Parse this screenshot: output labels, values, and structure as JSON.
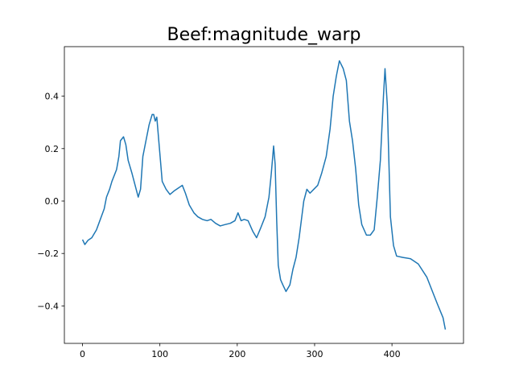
{
  "chart_data": {
    "type": "line",
    "title": "Beef:magnitude_warp",
    "x": [
      0,
      3,
      7,
      12,
      18,
      23,
      28,
      31,
      35,
      38,
      44,
      47,
      49,
      53,
      56,
      59,
      64,
      68,
      72,
      75,
      78,
      82,
      86,
      90,
      92,
      94,
      96,
      99,
      103,
      108,
      113,
      119,
      124,
      129,
      133,
      138,
      144,
      149,
      155,
      161,
      166,
      172,
      178,
      184,
      191,
      197,
      201,
      205,
      209,
      214,
      220,
      225,
      230,
      236,
      241,
      244,
      247,
      249,
      251,
      253,
      256,
      259,
      263,
      268,
      272,
      276,
      280,
      283,
      286,
      290,
      294,
      299,
      304,
      309,
      315,
      320,
      324,
      328,
      332,
      337,
      341,
      345,
      349,
      353,
      357,
      361,
      367,
      372,
      377,
      381,
      385,
      389,
      391,
      394,
      398,
      402,
      406,
      414,
      424,
      434,
      445,
      453,
      459,
      466,
      469
    ],
    "series": [
      {
        "color": "#1f77b4",
        "values": [
          -0.147,
          -0.166,
          -0.15,
          -0.14,
          -0.11,
          -0.07,
          -0.03,
          0.015,
          0.045,
          0.075,
          0.12,
          0.17,
          0.23,
          0.245,
          0.215,
          0.155,
          0.105,
          0.06,
          0.015,
          0.045,
          0.17,
          0.23,
          0.29,
          0.33,
          0.33,
          0.305,
          0.32,
          0.215,
          0.075,
          0.045,
          0.025,
          0.04,
          0.05,
          0.06,
          0.03,
          -0.015,
          -0.045,
          -0.06,
          -0.07,
          -0.075,
          -0.07,
          -0.085,
          -0.095,
          -0.09,
          -0.085,
          -0.075,
          -0.045,
          -0.075,
          -0.07,
          -0.075,
          -0.115,
          -0.14,
          -0.105,
          -0.06,
          0.015,
          0.105,
          0.21,
          0.14,
          -0.075,
          -0.245,
          -0.3,
          -0.32,
          -0.345,
          -0.32,
          -0.26,
          -0.215,
          -0.14,
          -0.07,
          0.0,
          0.045,
          0.03,
          0.045,
          0.06,
          0.105,
          0.17,
          0.275,
          0.4,
          0.475,
          0.535,
          0.505,
          0.46,
          0.305,
          0.23,
          0.125,
          -0.015,
          -0.09,
          -0.13,
          -0.13,
          -0.11,
          0.015,
          0.155,
          0.4,
          0.505,
          0.365,
          -0.06,
          -0.17,
          -0.21,
          -0.215,
          -0.22,
          -0.24,
          -0.29,
          -0.35,
          -0.395,
          -0.445,
          -0.49
        ]
      }
    ],
    "xlim": [
      -23.45,
      492.45
    ],
    "xticks": [
      0,
      100,
      200,
      300,
      400
    ],
    "ylim": [
      -0.543,
      0.589
    ],
    "yticks": [
      {
        "value": -0.4,
        "label": "−0.4"
      },
      {
        "value": -0.2,
        "label": "−0.2"
      },
      {
        "value": 0,
        "label": "0.0"
      },
      0.2,
      0.4
    ]
  }
}
